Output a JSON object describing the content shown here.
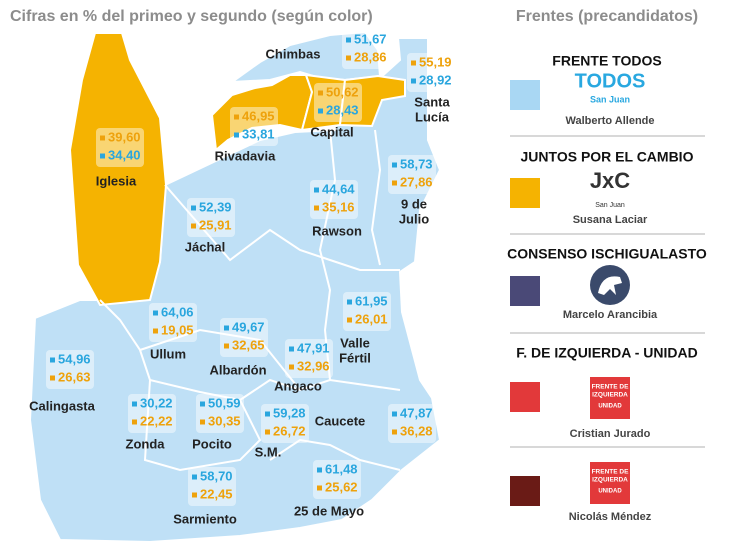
{
  "title": "Cifras en % del primeo y segundo (según color)",
  "legend_title": "Frentes (precandidatos)",
  "departments": [
    {
      "name": [
        "Chimbas"
      ],
      "values": [
        {
          "text": "51,67",
          "color": "#2aa6de"
        },
        {
          "text": "28,86",
          "color": "#eea20c"
        }
      ]
    },
    {
      "name": [
        "Santa",
        "Lucía"
      ],
      "values": [
        {
          "text": "55,19",
          "color": "#eea20c"
        },
        {
          "text": "28,92",
          "color": "#2aa6de"
        }
      ]
    },
    {
      "name": [
        "Capital"
      ],
      "values": [
        {
          "text": "50,62",
          "color": "#eea20c"
        },
        {
          "text": "28,43",
          "color": "#2aa6de"
        }
      ]
    },
    {
      "name": [
        "Rivadavia"
      ],
      "values": [
        {
          "text": "46,95",
          "color": "#eea20c"
        },
        {
          "text": "33,81",
          "color": "#2aa6de"
        }
      ]
    },
    {
      "name": [
        "Iglesia"
      ],
      "values": [
        {
          "text": "39,60",
          "color": "#eea20c"
        },
        {
          "text": "34,40",
          "color": "#2aa6de"
        }
      ]
    },
    {
      "name": [
        "9 de",
        "Julio"
      ],
      "values": [
        {
          "text": "58,73",
          "color": "#2aa6de"
        },
        {
          "text": "27,86",
          "color": "#eea20c"
        }
      ]
    },
    {
      "name": [
        "Rawson"
      ],
      "values": [
        {
          "text": "44,64",
          "color": "#2aa6de"
        },
        {
          "text": "35,16",
          "color": "#eea20c"
        }
      ]
    },
    {
      "name": [
        "Jáchal"
      ],
      "values": [
        {
          "text": "52,39",
          "color": "#2aa6de"
        },
        {
          "text": "25,91",
          "color": "#eea20c"
        }
      ]
    },
    {
      "name": [
        "Valle",
        "Fértil"
      ],
      "values": [
        {
          "text": "61,95",
          "color": "#2aa6de"
        },
        {
          "text": "26,01",
          "color": "#eea20c"
        }
      ]
    },
    {
      "name": [
        "Ullum"
      ],
      "values": [
        {
          "text": "64,06",
          "color": "#2aa6de"
        },
        {
          "text": "19,05",
          "color": "#eea20c"
        }
      ]
    },
    {
      "name": [
        "Albardón"
      ],
      "values": [
        {
          "text": "49,67",
          "color": "#2aa6de"
        },
        {
          "text": "32,65",
          "color": "#eea20c"
        }
      ]
    },
    {
      "name": [
        "Angaco"
      ],
      "values": [
        {
          "text": "47,91",
          "color": "#2aa6de"
        },
        {
          "text": "32,96",
          "color": "#eea20c"
        }
      ]
    },
    {
      "name": [
        "Calingasta"
      ],
      "values": [
        {
          "text": "54,96",
          "color": "#2aa6de"
        },
        {
          "text": "26,63",
          "color": "#eea20c"
        }
      ]
    },
    {
      "name": [
        "Zonda"
      ],
      "values": [
        {
          "text": "30,22",
          "color": "#2aa6de"
        },
        {
          "text": "22,22",
          "color": "#eea20c"
        }
      ]
    },
    {
      "name": [
        "Pocito"
      ],
      "values": [
        {
          "text": "50,59",
          "color": "#2aa6de"
        },
        {
          "text": "30,35",
          "color": "#eea20c"
        }
      ]
    },
    {
      "name": [
        "Sarmiento"
      ],
      "values": [
        {
          "text": "58,70",
          "color": "#2aa6de"
        },
        {
          "text": "22,45",
          "color": "#eea20c"
        }
      ]
    },
    {
      "name": [
        "S.M."
      ],
      "values": [
        {
          "text": "59,28",
          "color": "#2aa6de"
        },
        {
          "text": "26,72",
          "color": "#eea20c"
        }
      ]
    },
    {
      "name": [
        "Caucete"
      ],
      "values": [
        {
          "text": "47,87",
          "color": "#2aa6de"
        },
        {
          "text": "36,28",
          "color": "#eea20c"
        }
      ]
    },
    {
      "name": [
        "25 de Mayo"
      ],
      "values": [
        {
          "text": "61,48",
          "color": "#2aa6de"
        },
        {
          "text": "25,62",
          "color": "#eea20c"
        }
      ]
    }
  ],
  "fronts": [
    {
      "heading": "FRENTE TODOS",
      "logo": [
        "TODOS",
        "San Juan"
      ],
      "candidate": "Walberto Allende",
      "color": "#a9d7f3"
    },
    {
      "heading": "JUNTOS POR EL CAMBIO",
      "logo": [
        "JxC",
        "San Juan"
      ],
      "candidate": "Susana Laciar",
      "color": "#f5b301"
    },
    {
      "heading": "CONSENSO ISCHIGUALASTO",
      "candidate": "Marcelo Arancibia",
      "color": "#4a4977"
    },
    {
      "heading": "F. DE IZQUIERDA - UNIDAD",
      "logo": [
        "FRENTE DE",
        "IZQUIERDA",
        "UNIDAD"
      ],
      "candidate": "Cristian Jurado",
      "color": "#e2393a"
    },
    {
      "logo": [
        "FRENTE DE",
        "IZQUIERDA",
        "UNIDAD"
      ],
      "candidate": "Nicolás Méndez",
      "color": "#6a1b16"
    }
  ]
}
